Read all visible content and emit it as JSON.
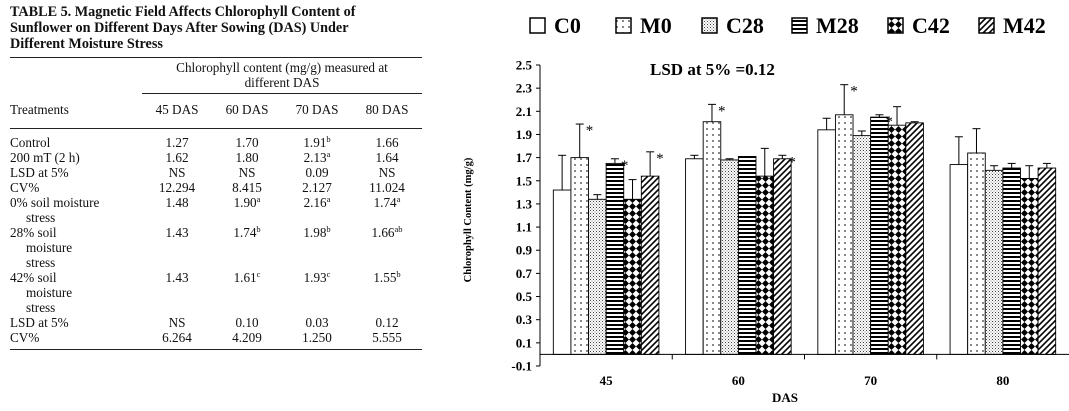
{
  "table": {
    "caption_lines": [
      "TABLE 5. Magnetic Field Affects Chlorophyll Content of",
      "Sunflower on Different Days After Sowing (DAS) Under",
      "Different Moisture Stress"
    ],
    "spanner_lines": [
      "Chlorophyll content (mg/g) measured at",
      "different DAS"
    ],
    "header": [
      "Treatments",
      "45 DAS",
      "60 DAS",
      "70 DAS",
      "80 DAS"
    ],
    "rows": [
      {
        "label": [
          "Control"
        ],
        "cells": [
          {
            "v": "1.27"
          },
          {
            "v": "1.70"
          },
          {
            "v": "1.91",
            "s": "b"
          },
          {
            "v": "1.66"
          }
        ]
      },
      {
        "label": [
          "200 mT (2 h)"
        ],
        "cells": [
          {
            "v": "1.62"
          },
          {
            "v": "1.80"
          },
          {
            "v": "2.13",
            "s": "a"
          },
          {
            "v": "1.64"
          }
        ]
      },
      {
        "label": [
          "LSD at 5%"
        ],
        "cells": [
          {
            "v": "NS"
          },
          {
            "v": "NS"
          },
          {
            "v": "0.09"
          },
          {
            "v": "NS"
          }
        ]
      },
      {
        "label": [
          "CV%"
        ],
        "cells": [
          {
            "v": "12.294"
          },
          {
            "v": "8.415"
          },
          {
            "v": "2.127"
          },
          {
            "v": "11.024"
          }
        ]
      },
      {
        "label": [
          "0% soil moisture",
          "stress"
        ],
        "cells": [
          {
            "v": "1.48"
          },
          {
            "v": "1.90",
            "s": "a"
          },
          {
            "v": "2.16",
            "s": "a"
          },
          {
            "v": "1.74",
            "s": "a"
          }
        ]
      },
      {
        "label": [
          "28% soil",
          "moisture",
          "stress"
        ],
        "cells": [
          {
            "v": "1.43"
          },
          {
            "v": "1.74",
            "s": "b"
          },
          {
            "v": "1.98",
            "s": "b"
          },
          {
            "v": "1.66",
            "s": "ab"
          }
        ]
      },
      {
        "label": [
          "42% soil",
          "moisture",
          "stress"
        ],
        "cells": [
          {
            "v": "1.43"
          },
          {
            "v": "1.61",
            "s": "c"
          },
          {
            "v": "1.93",
            "s": "c"
          },
          {
            "v": "1.55",
            "s": "b"
          }
        ]
      },
      {
        "label": [
          "LSD at 5%"
        ],
        "cells": [
          {
            "v": "NS"
          },
          {
            "v": "0.10"
          },
          {
            "v": "0.03"
          },
          {
            "v": "0.12"
          }
        ]
      },
      {
        "label": [
          "CV%"
        ],
        "cells": [
          {
            "v": "6.264"
          },
          {
            "v": "4.209"
          },
          {
            "v": "1.250"
          },
          {
            "v": "5.555"
          }
        ]
      }
    ]
  },
  "chart_data": {
    "type": "bar",
    "title": "LSD at 5% =0.12",
    "xlabel": "DAS",
    "ylabel": "Chlorophyll Content (mg/g)",
    "ylim": [
      -0.1,
      2.5
    ],
    "yticks": [
      "2.5",
      "2.3",
      "2.1",
      "1.9",
      "1.7",
      "1.5",
      "1.3",
      "1.1",
      "0.9",
      "0.7",
      "0.5",
      "0.3",
      "0.1",
      "-0.1"
    ],
    "categories": [
      "45",
      "60",
      "70",
      "80"
    ],
    "legend_position": "top",
    "grid": false,
    "series": [
      {
        "name": "C0",
        "pattern": "plain",
        "values": [
          1.42,
          1.69,
          1.94,
          1.64
        ],
        "errors": [
          0.3,
          0.03,
          0.1,
          0.24
        ],
        "stars": [
          false,
          false,
          false,
          false
        ]
      },
      {
        "name": "M0",
        "pattern": "dots",
        "values": [
          1.7,
          2.01,
          2.07,
          1.74
        ],
        "errors": [
          0.29,
          0.15,
          0.26,
          0.21
        ],
        "stars": [
          true,
          true,
          true,
          false
        ]
      },
      {
        "name": "C28",
        "pattern": "stipple",
        "values": [
          1.34,
          1.68,
          1.89,
          1.59
        ],
        "errors": [
          0.04,
          0.01,
          0.04,
          0.04
        ],
        "stars": [
          false,
          false,
          false,
          false
        ]
      },
      {
        "name": "M28",
        "pattern": "hlines",
        "values": [
          1.65,
          1.71,
          2.05,
          1.61
        ],
        "errors": [
          0.04,
          0.0,
          0.02,
          0.04
        ],
        "stars": [
          true,
          false,
          true,
          false
        ]
      },
      {
        "name": "C42",
        "pattern": "diamonds",
        "values": [
          1.34,
          1.54,
          1.98,
          1.52
        ],
        "errors": [
          0.17,
          0.24,
          0.16,
          0.11
        ],
        "stars": [
          false,
          false,
          false,
          false
        ]
      },
      {
        "name": "M42",
        "pattern": "diag",
        "values": [
          1.54,
          1.69,
          2.0,
          1.61
        ],
        "errors": [
          0.21,
          0.03,
          0.01,
          0.04
        ],
        "stars": [
          true,
          true,
          false,
          false
        ]
      }
    ],
    "significance_mark": "*"
  }
}
